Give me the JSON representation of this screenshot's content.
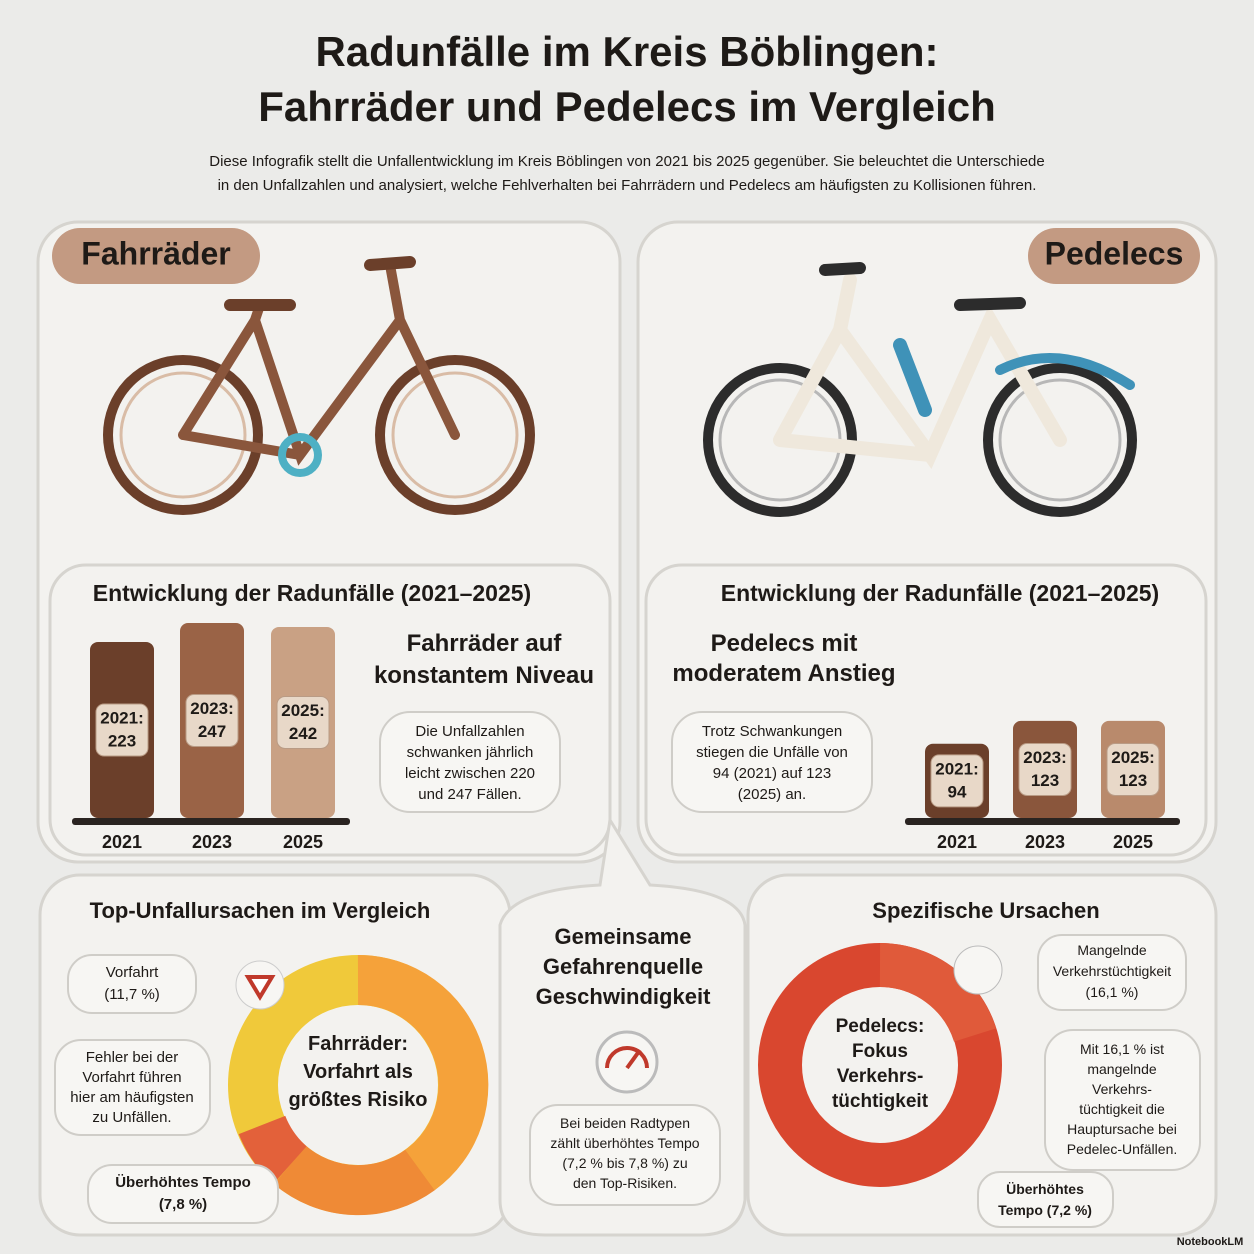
{
  "header": {
    "title": [
      "Radunfälle im Kreis Böblingen:",
      "Fahrräder und Pedelecs im Vergleich"
    ],
    "subtitle": [
      "Diese Infografik stellt die Unfallentwicklung im Kreis Böblingen von 2021 bis 2025 gegenüber. Sie beleuchtet die Unterschiede",
      "in den Unfallzahlen und analysiert, welche Fehlverhalten bei Fahrrädern und Pedelecs am häufigsten zu Kollisionen führen."
    ]
  },
  "panels": [
    {
      "label": "Fahrräder",
      "chart_title": "Entwicklung der Radunfälle (2021–2025)",
      "headline": [
        "Fahrräder auf",
        "konstantem Niveau"
      ],
      "note": [
        "Die Unfallzahlen",
        "schwanken jährlich",
        "leicht zwischen 220",
        "und 247 Fällen."
      ],
      "categories": [
        "2021",
        "2023",
        "2025"
      ],
      "bar_labels": [
        "2021:",
        "2023:",
        "2025:"
      ],
      "values": [
        223,
        247,
        242
      ],
      "colors": [
        "#6b3f2a",
        "#9a6346",
        "#c9a184"
      ]
    },
    {
      "label": "Pedelecs",
      "chart_title": "Entwicklung der Radunfälle (2021–2025)",
      "headline": [
        "Pedelecs mit",
        "moderatem Anstieg"
      ],
      "note": [
        "Trotz Schwankungen",
        "stiegen die Unfälle von",
        "94 (2021) auf 123",
        "(2025) an."
      ],
      "categories": [
        "2021",
        "2023",
        "2025"
      ],
      "bar_labels": [
        "2021:",
        "2023:",
        "2025:"
      ],
      "values": [
        94,
        123,
        123
      ],
      "colors": [
        "#6b3f2a",
        "#8a563c",
        "#b98a6c"
      ]
    }
  ],
  "causes": {
    "left": {
      "title": "Top-Unfallursachen im Vergleich",
      "center": [
        "Fahrräder:",
        "Vorfahrt als",
        "größtes Risiko"
      ],
      "callouts": [
        [
          "Vorfahrt",
          "(11,7 %)"
        ],
        [
          "Fehler bei der",
          "Vorfahrt führen",
          "hier am häufigsten",
          "zu Unfällen."
        ],
        [
          "Überhöhtes Tempo",
          "(7,8 %)"
        ]
      ]
    },
    "middle": {
      "title": [
        "Gemeinsame",
        "Gefahrenquelle",
        "Geschwindigkeit"
      ],
      "note": [
        "Bei beiden Radtypen",
        "zählt überhöhtes Tempo",
        "(7,2 % bis 7,8 %) zu",
        "den Top-Risiken."
      ]
    },
    "right": {
      "title": "Spezifische Ursachen",
      "center": [
        "Pedelecs:",
        "Fokus",
        "Verkehrs-",
        "tüchtigkeit"
      ],
      "callouts": [
        [
          "Mangelnde",
          "Verkehrstüchtigkeit",
          "(16,1 %)"
        ],
        [
          "Mit 16,1 % ist",
          "mangelnde",
          "Verkehrs-",
          "tüchtigkeit die",
          "Hauptursache bei",
          "Pedelec-Unfällen."
        ],
        [
          "Überhöhtes",
          "Tempo (7,2 %)"
        ]
      ]
    }
  },
  "footer": "NotebookLM"
}
